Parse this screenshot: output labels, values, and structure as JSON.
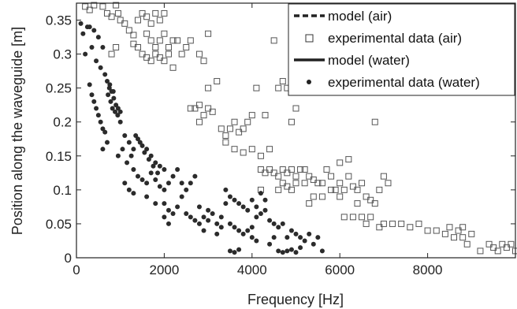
{
  "chart_data": {
    "type": "scatter",
    "xlabel": "Frequency [Hz]",
    "ylabel": "Position along the waveguide [m]",
    "xlim": [
      0,
      10000
    ],
    "ylim": [
      0,
      0.375
    ],
    "x_ticks": [
      "0",
      "2000",
      "4000",
      "6000",
      "8000"
    ],
    "x_tick_values": [
      0,
      2000,
      4000,
      6000,
      8000
    ],
    "y_ticks": [
      "0",
      "0.05",
      "0.1",
      "0.15",
      "0.2",
      "0.25",
      "0.3",
      "0.35"
    ],
    "y_tick_values": [
      0,
      0.05,
      0.1,
      0.15,
      0.2,
      0.25,
      0.3,
      0.35
    ],
    "grid": false,
    "legend_position": "top-right",
    "legend": [
      {
        "label": "model (air)",
        "style": "dashed-line"
      },
      {
        "label": "experimental data (air)",
        "style": "open-square"
      },
      {
        "label": "model (water)",
        "style": "solid-line"
      },
      {
        "label": "experimental data (water)",
        "style": "filled-dot"
      }
    ],
    "series": [
      {
        "name": "experimental data (air)",
        "marker": "open-square",
        "color": "#555555",
        "points": [
          [
            200,
            0.37
          ],
          [
            300,
            0.365
          ],
          [
            400,
            0.372
          ],
          [
            600,
            0.37
          ],
          [
            700,
            0.36
          ],
          [
            800,
            0.355
          ],
          [
            900,
            0.372
          ],
          [
            950,
            0.36
          ],
          [
            1000,
            0.35
          ],
          [
            1100,
            0.345
          ],
          [
            1200,
            0.335
          ],
          [
            1300,
            0.328
          ],
          [
            1400,
            0.35
          ],
          [
            1500,
            0.36
          ],
          [
            1600,
            0.355
          ],
          [
            1700,
            0.345
          ],
          [
            1800,
            0.36
          ],
          [
            1900,
            0.35
          ],
          [
            2000,
            0.36
          ],
          [
            1600,
            0.33
          ],
          [
            1700,
            0.32
          ],
          [
            1800,
            0.31
          ],
          [
            1900,
            0.32
          ],
          [
            2000,
            0.33
          ],
          [
            2100,
            0.31
          ],
          [
            2200,
            0.32
          ],
          [
            1500,
            0.3
          ],
          [
            1600,
            0.295
          ],
          [
            1700,
            0.29
          ],
          [
            1800,
            0.3
          ],
          [
            1900,
            0.295
          ],
          [
            2000,
            0.29
          ],
          [
            2100,
            0.3
          ],
          [
            2200,
            0.28
          ],
          [
            2300,
            0.32
          ],
          [
            2400,
            0.3
          ],
          [
            2500,
            0.31
          ],
          [
            2600,
            0.32
          ],
          [
            2800,
            0.3
          ],
          [
            2900,
            0.29
          ],
          [
            1300,
            0.315
          ],
          [
            1400,
            0.31
          ],
          [
            800,
            0.3
          ],
          [
            900,
            0.31
          ],
          [
            3000,
            0.33
          ],
          [
            2600,
            0.22
          ],
          [
            2700,
            0.22
          ],
          [
            2800,
            0.225
          ],
          [
            3000,
            0.22
          ],
          [
            3100,
            0.215
          ],
          [
            3200,
            0.26
          ],
          [
            3000,
            0.25
          ],
          [
            2900,
            0.21
          ],
          [
            2800,
            0.2
          ],
          [
            3300,
            0.19
          ],
          [
            3400,
            0.18
          ],
          [
            3500,
            0.19
          ],
          [
            3600,
            0.2
          ],
          [
            3700,
            0.185
          ],
          [
            3800,
            0.19
          ],
          [
            3900,
            0.2
          ],
          [
            3400,
            0.17
          ],
          [
            3600,
            0.16
          ],
          [
            3800,
            0.155
          ],
          [
            4000,
            0.16
          ],
          [
            4200,
            0.15
          ],
          [
            4000,
            0.21
          ],
          [
            4100,
            0.25
          ],
          [
            4300,
            0.21
          ],
          [
            4400,
            0.16
          ],
          [
            4600,
            0.25
          ],
          [
            4700,
            0.26
          ],
          [
            4800,
            0.25
          ],
          [
            5000,
            0.22
          ],
          [
            4500,
            0.32
          ],
          [
            4200,
            0.13
          ],
          [
            4300,
            0.125
          ],
          [
            4400,
            0.13
          ],
          [
            4500,
            0.125
          ],
          [
            4600,
            0.12
          ],
          [
            4700,
            0.13
          ],
          [
            4800,
            0.125
          ],
          [
            4900,
            0.13
          ],
          [
            5000,
            0.12
          ],
          [
            5100,
            0.13
          ],
          [
            5200,
            0.11
          ],
          [
            5300,
            0.12
          ],
          [
            4600,
            0.1
          ],
          [
            4700,
            0.11
          ],
          [
            4800,
            0.105
          ],
          [
            4900,
            0.1
          ],
          [
            5000,
            0.11
          ],
          [
            5200,
            0.13
          ],
          [
            5400,
            0.115
          ],
          [
            5500,
            0.11
          ],
          [
            5600,
            0.11
          ],
          [
            5700,
            0.13
          ],
          [
            5800,
            0.12
          ],
          [
            5900,
            0.1
          ],
          [
            6000,
            0.11
          ],
          [
            6100,
            0.1
          ],
          [
            6200,
            0.12
          ],
          [
            6300,
            0.105
          ],
          [
            6400,
            0.1
          ],
          [
            6500,
            0.11
          ],
          [
            5600,
            0.09
          ],
          [
            5800,
            0.1
          ],
          [
            6000,
            0.09
          ],
          [
            5400,
            0.09
          ],
          [
            6600,
            0.09
          ],
          [
            6700,
            0.085
          ],
          [
            6800,
            0.08
          ],
          [
            6400,
            0.08
          ],
          [
            6900,
            0.1
          ],
          [
            7000,
            0.12
          ],
          [
            6000,
            0.14
          ],
          [
            6200,
            0.145
          ],
          [
            6800,
            0.2
          ],
          [
            7100,
            0.11
          ],
          [
            6100,
            0.06
          ],
          [
            6300,
            0.06
          ],
          [
            6500,
            0.06
          ],
          [
            6700,
            0.06
          ],
          [
            7000,
            0.05
          ],
          [
            7200,
            0.05
          ],
          [
            7400,
            0.05
          ],
          [
            7600,
            0.045
          ],
          [
            7800,
            0.05
          ],
          [
            6600,
            0.05
          ],
          [
            6900,
            0.045
          ],
          [
            8000,
            0.04
          ],
          [
            8200,
            0.04
          ],
          [
            8400,
            0.035
          ],
          [
            8600,
            0.03
          ],
          [
            8800,
            0.03
          ],
          [
            8700,
            0.04
          ],
          [
            8900,
            0.02
          ],
          [
            9000,
            0.035
          ],
          [
            9200,
            0.01
          ],
          [
            9400,
            0.02
          ],
          [
            9500,
            0.015
          ],
          [
            9600,
            0.01
          ],
          [
            9700,
            0.02
          ],
          [
            9800,
            0.015
          ],
          [
            9900,
            0.02
          ],
          [
            10000,
            0.01
          ],
          [
            8800,
            0.045
          ],
          [
            8500,
            0.045
          ],
          [
            5200,
            0.32
          ],
          [
            4900,
            0.2
          ],
          [
            5300,
            0.08
          ],
          [
            4200,
            0.1
          ]
        ]
      },
      {
        "name": "experimental data (water)",
        "marker": "filled-dot",
        "color": "#2b2b2b",
        "points": [
          [
            100,
            0.345
          ],
          [
            150,
            0.33
          ],
          [
            200,
            0.3
          ],
          [
            250,
            0.34
          ],
          [
            300,
            0.34
          ],
          [
            350,
            0.31
          ],
          [
            400,
            0.335
          ],
          [
            450,
            0.29
          ],
          [
            500,
            0.325
          ],
          [
            550,
            0.28
          ],
          [
            600,
            0.31
          ],
          [
            650,
            0.27
          ],
          [
            700,
            0.26
          ],
          [
            750,
            0.25
          ],
          [
            800,
            0.245
          ],
          [
            850,
            0.235
          ],
          [
            900,
            0.225
          ],
          [
            950,
            0.22
          ],
          [
            1000,
            0.215
          ],
          [
            720,
            0.24
          ],
          [
            780,
            0.23
          ],
          [
            820,
            0.22
          ],
          [
            880,
            0.215
          ],
          [
            940,
            0.21
          ],
          [
            760,
            0.255
          ],
          [
            840,
            0.245
          ],
          [
            300,
            0.255
          ],
          [
            350,
            0.24
          ],
          [
            400,
            0.23
          ],
          [
            450,
            0.22
          ],
          [
            500,
            0.21
          ],
          [
            550,
            0.2
          ],
          [
            600,
            0.19
          ],
          [
            650,
            0.185
          ],
          [
            1000,
            0.2
          ],
          [
            1100,
            0.18
          ],
          [
            1200,
            0.17
          ],
          [
            1300,
            0.16
          ],
          [
            1400,
            0.175
          ],
          [
            1500,
            0.165
          ],
          [
            1600,
            0.16
          ],
          [
            1700,
            0.15
          ],
          [
            1800,
            0.14
          ],
          [
            1900,
            0.135
          ],
          [
            1350,
            0.18
          ],
          [
            1450,
            0.17
          ],
          [
            1550,
            0.155
          ],
          [
            1650,
            0.145
          ],
          [
            1750,
            0.135
          ],
          [
            1850,
            0.125
          ],
          [
            1250,
            0.15
          ],
          [
            1150,
            0.14
          ],
          [
            1050,
            0.16
          ],
          [
            950,
            0.15
          ],
          [
            1300,
            0.13
          ],
          [
            1400,
            0.12
          ],
          [
            1500,
            0.115
          ],
          [
            1600,
            0.11
          ],
          [
            1700,
            0.125
          ],
          [
            1800,
            0.115
          ],
          [
            1900,
            0.105
          ],
          [
            2000,
            0.1
          ],
          [
            1200,
            0.1
          ],
          [
            1300,
            0.095
          ],
          [
            1100,
            0.11
          ],
          [
            2000,
            0.08
          ],
          [
            2100,
            0.07
          ],
          [
            2200,
            0.065
          ],
          [
            2300,
            0.075
          ],
          [
            2400,
            0.09
          ],
          [
            2500,
            0.1
          ],
          [
            2600,
            0.11
          ],
          [
            2700,
            0.12
          ],
          [
            2000,
            0.06
          ],
          [
            2100,
            0.05
          ],
          [
            2500,
            0.065
          ],
          [
            2600,
            0.06
          ],
          [
            2700,
            0.055
          ],
          [
            2800,
            0.05
          ],
          [
            2900,
            0.06
          ],
          [
            3000,
            0.07
          ],
          [
            3100,
            0.065
          ],
          [
            3200,
            0.05
          ],
          [
            3300,
            0.045
          ],
          [
            3400,
            0.1
          ],
          [
            3500,
            0.09
          ],
          [
            3600,
            0.085
          ],
          [
            3700,
            0.08
          ],
          [
            3800,
            0.075
          ],
          [
            3900,
            0.07
          ],
          [
            3500,
            0.05
          ],
          [
            3600,
            0.045
          ],
          [
            3700,
            0.04
          ],
          [
            3800,
            0.035
          ],
          [
            3900,
            0.04
          ],
          [
            4000,
            0.045
          ],
          [
            4100,
            0.06
          ],
          [
            4200,
            0.065
          ],
          [
            3500,
            0.01
          ],
          [
            3600,
            0.008
          ],
          [
            3700,
            0.012
          ],
          [
            4000,
            0.085
          ],
          [
            4100,
            0.075
          ],
          [
            4300,
            0.07
          ],
          [
            4400,
            0.055
          ],
          [
            4500,
            0.05
          ],
          [
            4600,
            0.045
          ],
          [
            4700,
            0.05
          ],
          [
            4800,
            0.03
          ],
          [
            4900,
            0.04
          ],
          [
            5000,
            0.035
          ],
          [
            5100,
            0.03
          ],
          [
            5200,
            0.025
          ],
          [
            4500,
            0.03
          ],
          [
            4400,
            0.02
          ],
          [
            4600,
            0.01
          ],
          [
            4700,
            0.008
          ],
          [
            4800,
            0.01
          ],
          [
            4900,
            0.012
          ],
          [
            5000,
            0.008
          ],
          [
            5100,
            0.015
          ],
          [
            5300,
            0.035
          ],
          [
            5400,
            0.02
          ],
          [
            5500,
            0.03
          ],
          [
            5600,
            0.01
          ],
          [
            4300,
            0.085
          ],
          [
            4200,
            0.095
          ],
          [
            2200,
            0.12
          ],
          [
            2300,
            0.13
          ],
          [
            2400,
            0.11
          ],
          [
            1800,
            0.08
          ],
          [
            1600,
            0.09
          ],
          [
            3000,
            0.055
          ],
          [
            2800,
            0.075
          ],
          [
            2900,
            0.04
          ],
          [
            3200,
            0.035
          ],
          [
            700,
            0.17
          ],
          [
            600,
            0.16
          ],
          [
            2000,
            0.13
          ],
          [
            2100,
            0.11
          ],
          [
            3400,
            0.08
          ],
          [
            3300,
            0.06
          ],
          [
            4000,
            0.03
          ],
          [
            4100,
            0.025
          ]
        ]
      }
    ]
  }
}
